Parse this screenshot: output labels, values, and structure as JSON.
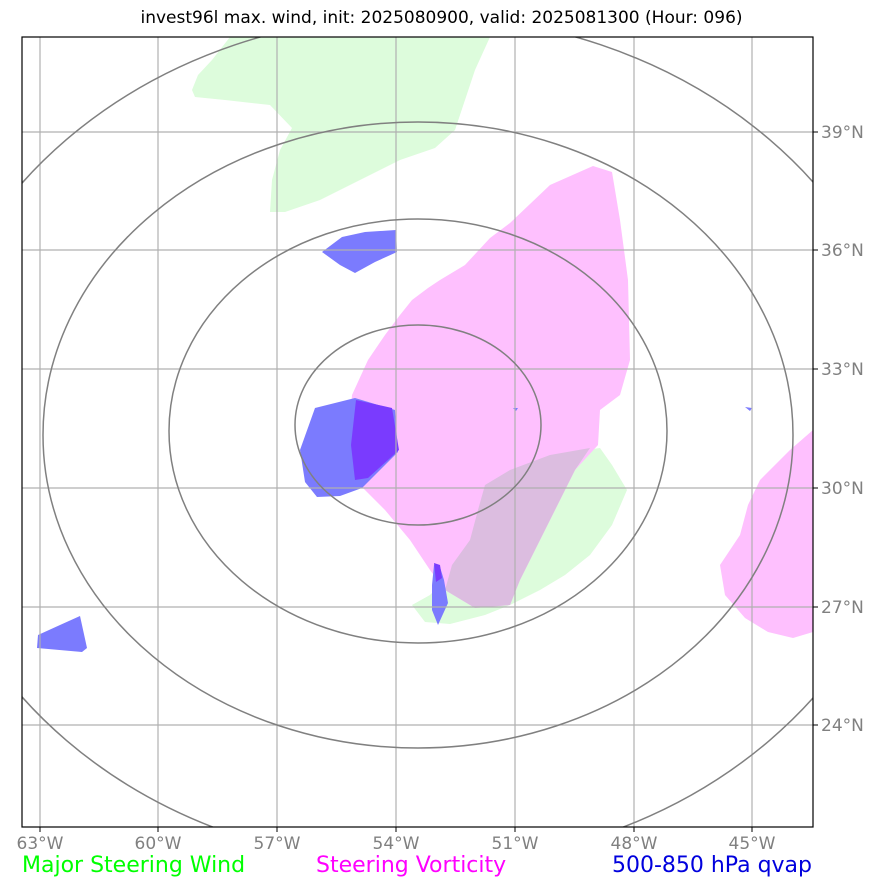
{
  "title": "invest96l max. wind, init: 2025080900, valid: 2025081300 (Hour: 096)",
  "axes": {
    "x_ticks": [
      "63°W",
      "60°W",
      "57°W",
      "54°W",
      "51°W",
      "48°W",
      "45°W"
    ],
    "y_ticks": [
      "39°N",
      "36°N",
      "33°N",
      "30°N",
      "27°N",
      "24°N"
    ],
    "grid": true
  },
  "legend": {
    "wind": {
      "label": "Major Steering Wind",
      "color": "#00ff00"
    },
    "vorticity": {
      "label": "Steering Vorticity",
      "color": "#ff00ff"
    },
    "qvap": {
      "label": "500-850 hPa qvap",
      "color": "#0000dd"
    }
  },
  "colors": {
    "wind_fill": "#ddfcdc",
    "vorticity_fill": "#fec0fe",
    "overlap_fill": "#dcbde0",
    "qvap_fill": "#7b7bfe",
    "qvap_dense_fill": "#7a3bfe",
    "range_ring": "#808080",
    "grid": "#b0b0b0"
  }
}
